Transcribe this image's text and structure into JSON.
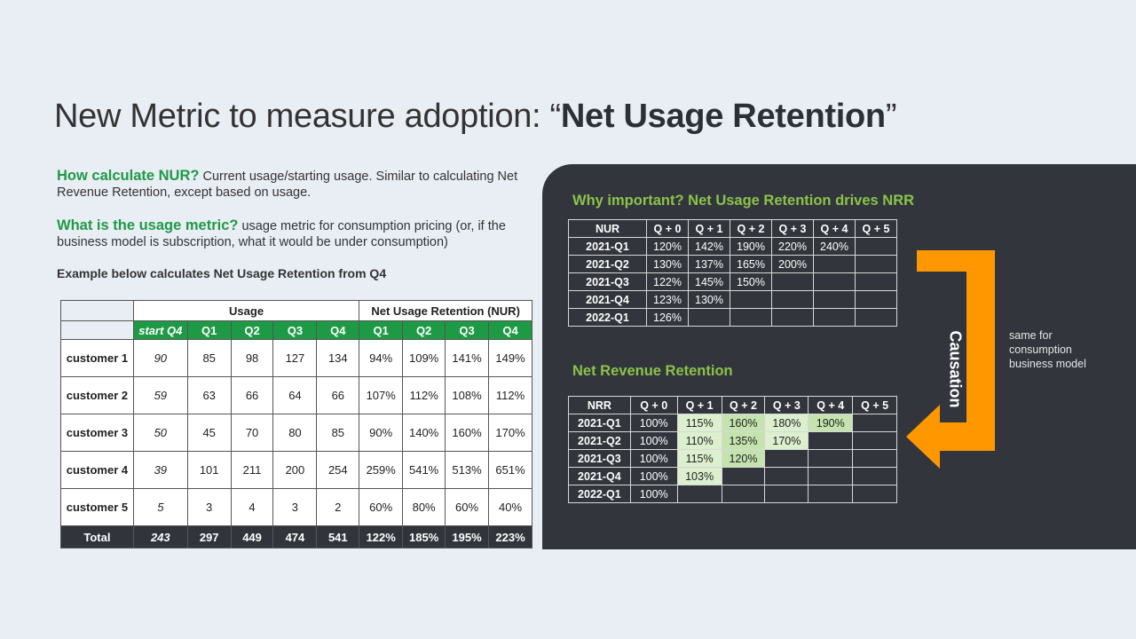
{
  "title": {
    "prefix": "New Metric to measure adoption: “",
    "bold": "Net Usage Retention",
    "suffix": "”"
  },
  "how": {
    "highlight": "How calculate NUR?",
    "text": " Current usage/starting usage. Similar to calculating Net Revenue Retention, except based on usage."
  },
  "what": {
    "highlight": "What is the usage metric?",
    "text": " usage metric for consumption pricing (or, if the business model is subscription, what it would be under consumption)"
  },
  "example": "Example below calculates Net Usage Retention from Q4",
  "usage_table": {
    "group_usage": "Usage",
    "group_nur": "Net Usage Retention (NUR)",
    "subheaders": [
      "start Q4",
      "Q1",
      "Q2",
      "Q3",
      "Q4",
      "Q1",
      "Q2",
      "Q3",
      "Q4"
    ],
    "rows": [
      {
        "name": "customer 1",
        "start": "90",
        "usage": [
          "85",
          "98",
          "127",
          "134"
        ],
        "nur": [
          "94%",
          "109%",
          "141%",
          "149%"
        ]
      },
      {
        "name": "customer 2",
        "start": "59",
        "usage": [
          "63",
          "66",
          "64",
          "66"
        ],
        "nur": [
          "107%",
          "112%",
          "108%",
          "112%"
        ]
      },
      {
        "name": "customer 3",
        "start": "50",
        "usage": [
          "45",
          "70",
          "80",
          "85"
        ],
        "nur": [
          "90%",
          "140%",
          "160%",
          "170%"
        ]
      },
      {
        "name": "customer 4",
        "start": "39",
        "usage": [
          "101",
          "211",
          "200",
          "254"
        ],
        "nur": [
          "259%",
          "541%",
          "513%",
          "651%"
        ]
      },
      {
        "name": "customer 5",
        "start": "5",
        "usage": [
          "3",
          "4",
          "3",
          "2"
        ],
        "nur": [
          "60%",
          "80%",
          "60%",
          "40%"
        ]
      }
    ],
    "total": {
      "name": "Total",
      "start": "243",
      "usage": [
        "297",
        "449",
        "474",
        "541"
      ],
      "nur": [
        "122%",
        "185%",
        "195%",
        "223%"
      ]
    }
  },
  "why_heading": "Why important? Net Usage Retention drives NRR",
  "nur_table": {
    "headers": [
      "NUR",
      "Q + 0",
      "Q + 1",
      "Q + 2",
      "Q + 3",
      "Q + 4",
      "Q + 5"
    ],
    "rows": [
      [
        "2021-Q1",
        "120%",
        "142%",
        "190%",
        "220%",
        "240%",
        ""
      ],
      [
        "2021-Q2",
        "130%",
        "137%",
        "165%",
        "200%",
        "",
        ""
      ],
      [
        "2021-Q3",
        "122%",
        "145%",
        "150%",
        "",
        "",
        ""
      ],
      [
        "2021-Q4",
        "123%",
        "130%",
        "",
        "",
        "",
        ""
      ],
      [
        "2022-Q1",
        "126%",
        "",
        "",
        "",
        "",
        ""
      ]
    ]
  },
  "nrr_heading": "Net Revenue Retention",
  "nrr_table": {
    "headers": [
      "NRR",
      "Q + 0",
      "Q + 1",
      "Q + 2",
      "Q + 3",
      "Q + 4",
      "Q + 5"
    ],
    "rows": [
      [
        "2021-Q1",
        "100%",
        "115%",
        "160%",
        "180%",
        "190%",
        ""
      ],
      [
        "2021-Q2",
        "100%",
        "110%",
        "135%",
        "170%",
        "",
        ""
      ],
      [
        "2021-Q3",
        "100%",
        "115%",
        "120%",
        "",
        "",
        ""
      ],
      [
        "2021-Q4",
        "100%",
        "103%",
        "",
        "",
        "",
        ""
      ],
      [
        "2022-Q1",
        "100%",
        "",
        "",
        "",
        "",
        ""
      ]
    ]
  },
  "causation": "Causation",
  "note": "same for consumption business model",
  "colors": {
    "accent_green": "#1e9a46",
    "light_green": "#8bc34a",
    "arrow_orange": "#ff9800",
    "panel": "#32353c"
  }
}
